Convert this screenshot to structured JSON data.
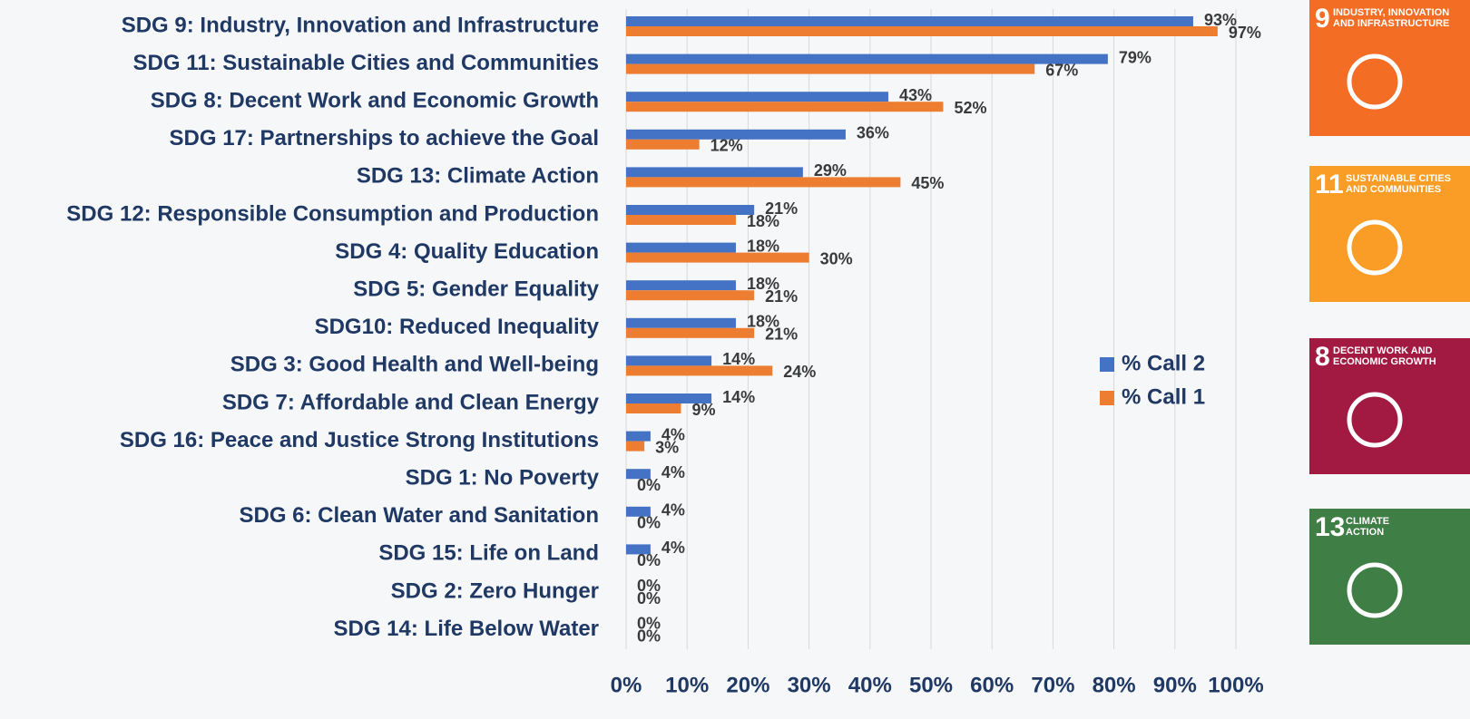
{
  "chart_data": {
    "type": "bar",
    "orientation": "horizontal",
    "categories": [
      "SDG 9: Industry, Innovation and Infrastructure",
      "SDG 11: Sustainable Cities and Communities",
      "SDG 8: Decent Work and Economic Growth",
      "SDG 17: Partnerships to achieve the Goal",
      "SDG 13: Climate Action",
      "SDG 12: Responsible Consumption and Production",
      "SDG 4: Quality Education",
      "SDG 5: Gender Equality",
      "SDG10: Reduced Inequality",
      "SDG 3: Good Health and Well-being",
      "SDG 7: Affordable and Clean Energy",
      "SDG 16: Peace and Justice Strong Institutions",
      "SDG 1: No Poverty",
      "SDG 6: Clean Water and Sanitation",
      "SDG 15: Life on Land",
      "SDG 2: Zero Hunger",
      "SDG 14: Life Below Water"
    ],
    "series": [
      {
        "name": "% Call 2",
        "color": "#4472c4",
        "values": [
          93,
          79,
          43,
          36,
          29,
          21,
          18,
          18,
          18,
          14,
          14,
          4,
          4,
          4,
          4,
          0,
          0
        ],
        "value_labels": [
          "93%",
          "79%",
          "43%",
          "36%",
          "29%",
          "21%",
          "18%",
          "18%",
          "18%",
          "14%",
          "14%",
          "4%",
          "4%",
          "4%",
          "4%",
          "0%",
          "0%"
        ]
      },
      {
        "name": "% Call 1",
        "color": "#ed7d31",
        "values": [
          97,
          67,
          52,
          12,
          45,
          18,
          30,
          21,
          21,
          24,
          9,
          3,
          0,
          0,
          0,
          0,
          0
        ],
        "value_labels": [
          "97%",
          "67%",
          "52%",
          "12%",
          "45%",
          "18%",
          "30%",
          "21%",
          "21%",
          "24%",
          "9%",
          "3%",
          "0%",
          "0%",
          "0%",
          "0%",
          "0%"
        ]
      }
    ],
    "xlim": [
      0,
      100
    ],
    "xticks": [
      {
        "value": 0,
        "label": "0%"
      },
      {
        "value": 10,
        "label": "10%"
      },
      {
        "value": 20,
        "label": "20%"
      },
      {
        "value": 30,
        "label": "30%"
      },
      {
        "value": 40,
        "label": "40%"
      },
      {
        "value": 50,
        "label": "50%"
      },
      {
        "value": 60,
        "label": "60%"
      },
      {
        "value": 70,
        "label": "70%"
      },
      {
        "value": 80,
        "label": "80%"
      },
      {
        "value": 90,
        "label": "90%"
      },
      {
        "value": 100,
        "label": "100%"
      }
    ],
    "grid": true,
    "legend": "right"
  },
  "tiles": [
    {
      "number": "9",
      "label": [
        "INDUSTRY, INNOVATION",
        "AND INFRASTRUCTURE"
      ],
      "color": "#f36d25"
    },
    {
      "number": "11",
      "label": [
        "SUSTAINABLE CITIES",
        "AND COMMUNITIES"
      ],
      "color": "#f99d26"
    },
    {
      "number": "8",
      "label": [
        "DECENT WORK AND",
        "ECONOMIC GROWTH"
      ],
      "color": "#a21942"
    },
    {
      "number": "13",
      "label": [
        "CLIMATE",
        "ACTION"
      ],
      "color": "#3f7e44"
    }
  ]
}
